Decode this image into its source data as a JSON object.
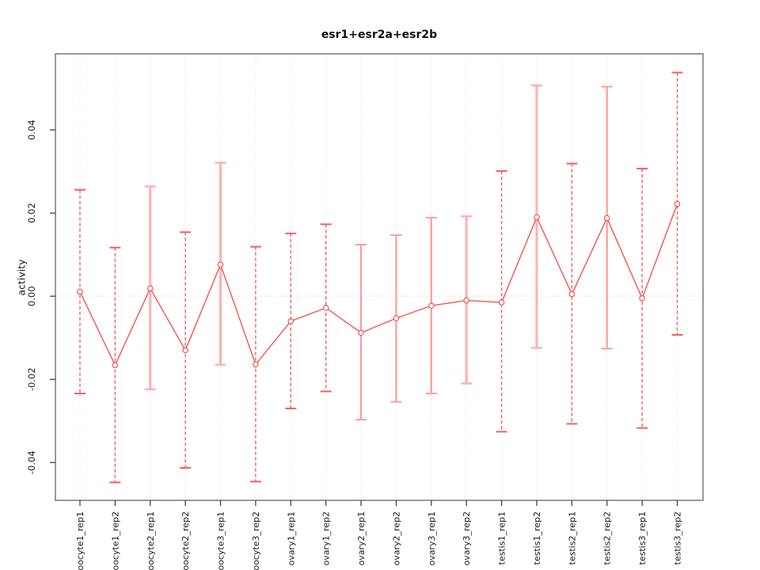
{
  "figure": {
    "title": "esr1+esr2a+esr2b"
  },
  "chart_data": {
    "type": "line",
    "title": "esr1+esr2a+esr2b",
    "xlabel": "",
    "ylabel": "activity",
    "legend": "none",
    "grid": "vertical dotted gridline at each category; dotted horizontal line at y=0",
    "error_bars": true,
    "point_marker": "open-circle",
    "ylim": [
      -0.0491,
      0.0583
    ],
    "yticks": [
      0.04,
      0.02,
      0,
      -0.02,
      -0.04
    ],
    "ytick_labels": [
      "0.04",
      "0.02",
      "0.00",
      "-0.02",
      "-0.04"
    ],
    "categories": [
      "oocyte1_rep1",
      "oocyte1_rep2",
      "oocyte2_rep1",
      "oocyte2_rep2",
      "oocyte3_rep1",
      "oocyte3_rep2",
      "ovary1_rep1",
      "ovary1_rep2",
      "ovary2_rep1",
      "ovary2_rep2",
      "ovary3_rep1",
      "ovary3_rep2",
      "testis1_rep1",
      "testis1_rep2",
      "testis2_rep1",
      "testis2_rep2",
      "testis3_rep1",
      "testis3_rep2"
    ],
    "series": [
      {
        "name": "activity",
        "values": [
          0.0011,
          -0.0166,
          0.0019,
          -0.013,
          0.0076,
          -0.0164,
          -0.006,
          -0.0028,
          -0.0088,
          -0.0053,
          -0.0023,
          -0.001,
          -0.0015,
          0.019,
          0.0005,
          0.0188,
          -0.0005,
          0.0222
        ],
        "lower": [
          -0.0234,
          -0.0448,
          -0.0224,
          -0.0413,
          -0.0165,
          -0.0446,
          -0.027,
          -0.0229,
          -0.0297,
          -0.0254,
          -0.0234,
          -0.021,
          -0.0326,
          -0.0124,
          -0.0307,
          -0.0126,
          -0.0317,
          -0.0093
        ],
        "upper": [
          0.0256,
          0.0117,
          0.0264,
          0.0154,
          0.0321,
          0.0119,
          0.0151,
          0.0173,
          0.0124,
          0.0147,
          0.0189,
          0.0192,
          0.0301,
          0.0507,
          0.0319,
          0.0504,
          0.0307,
          0.0538
        ]
      }
    ],
    "bar_styles": [
      "dashed",
      "dashed",
      "thick",
      "dashed",
      "thick",
      "dashed",
      "dashed",
      "dashed",
      "solid",
      "solid",
      "solid",
      "thick",
      "dashed",
      "thick",
      "dashed",
      "solid",
      "dashed",
      "dashed"
    ],
    "colors": {
      "line": "#f25555",
      "point_stroke": "#f25555",
      "point_fill": "#ffffff",
      "bar_thick": "#ffb3b3",
      "bar_solid": "#ff9b9b",
      "bar_dashed": "#f15f5f",
      "gridline": "#dcdcdc",
      "zero_line": "#cfcfcf",
      "axis": "#6e6e6e",
      "tick": "#333333",
      "text": "#1a1a1a"
    }
  }
}
